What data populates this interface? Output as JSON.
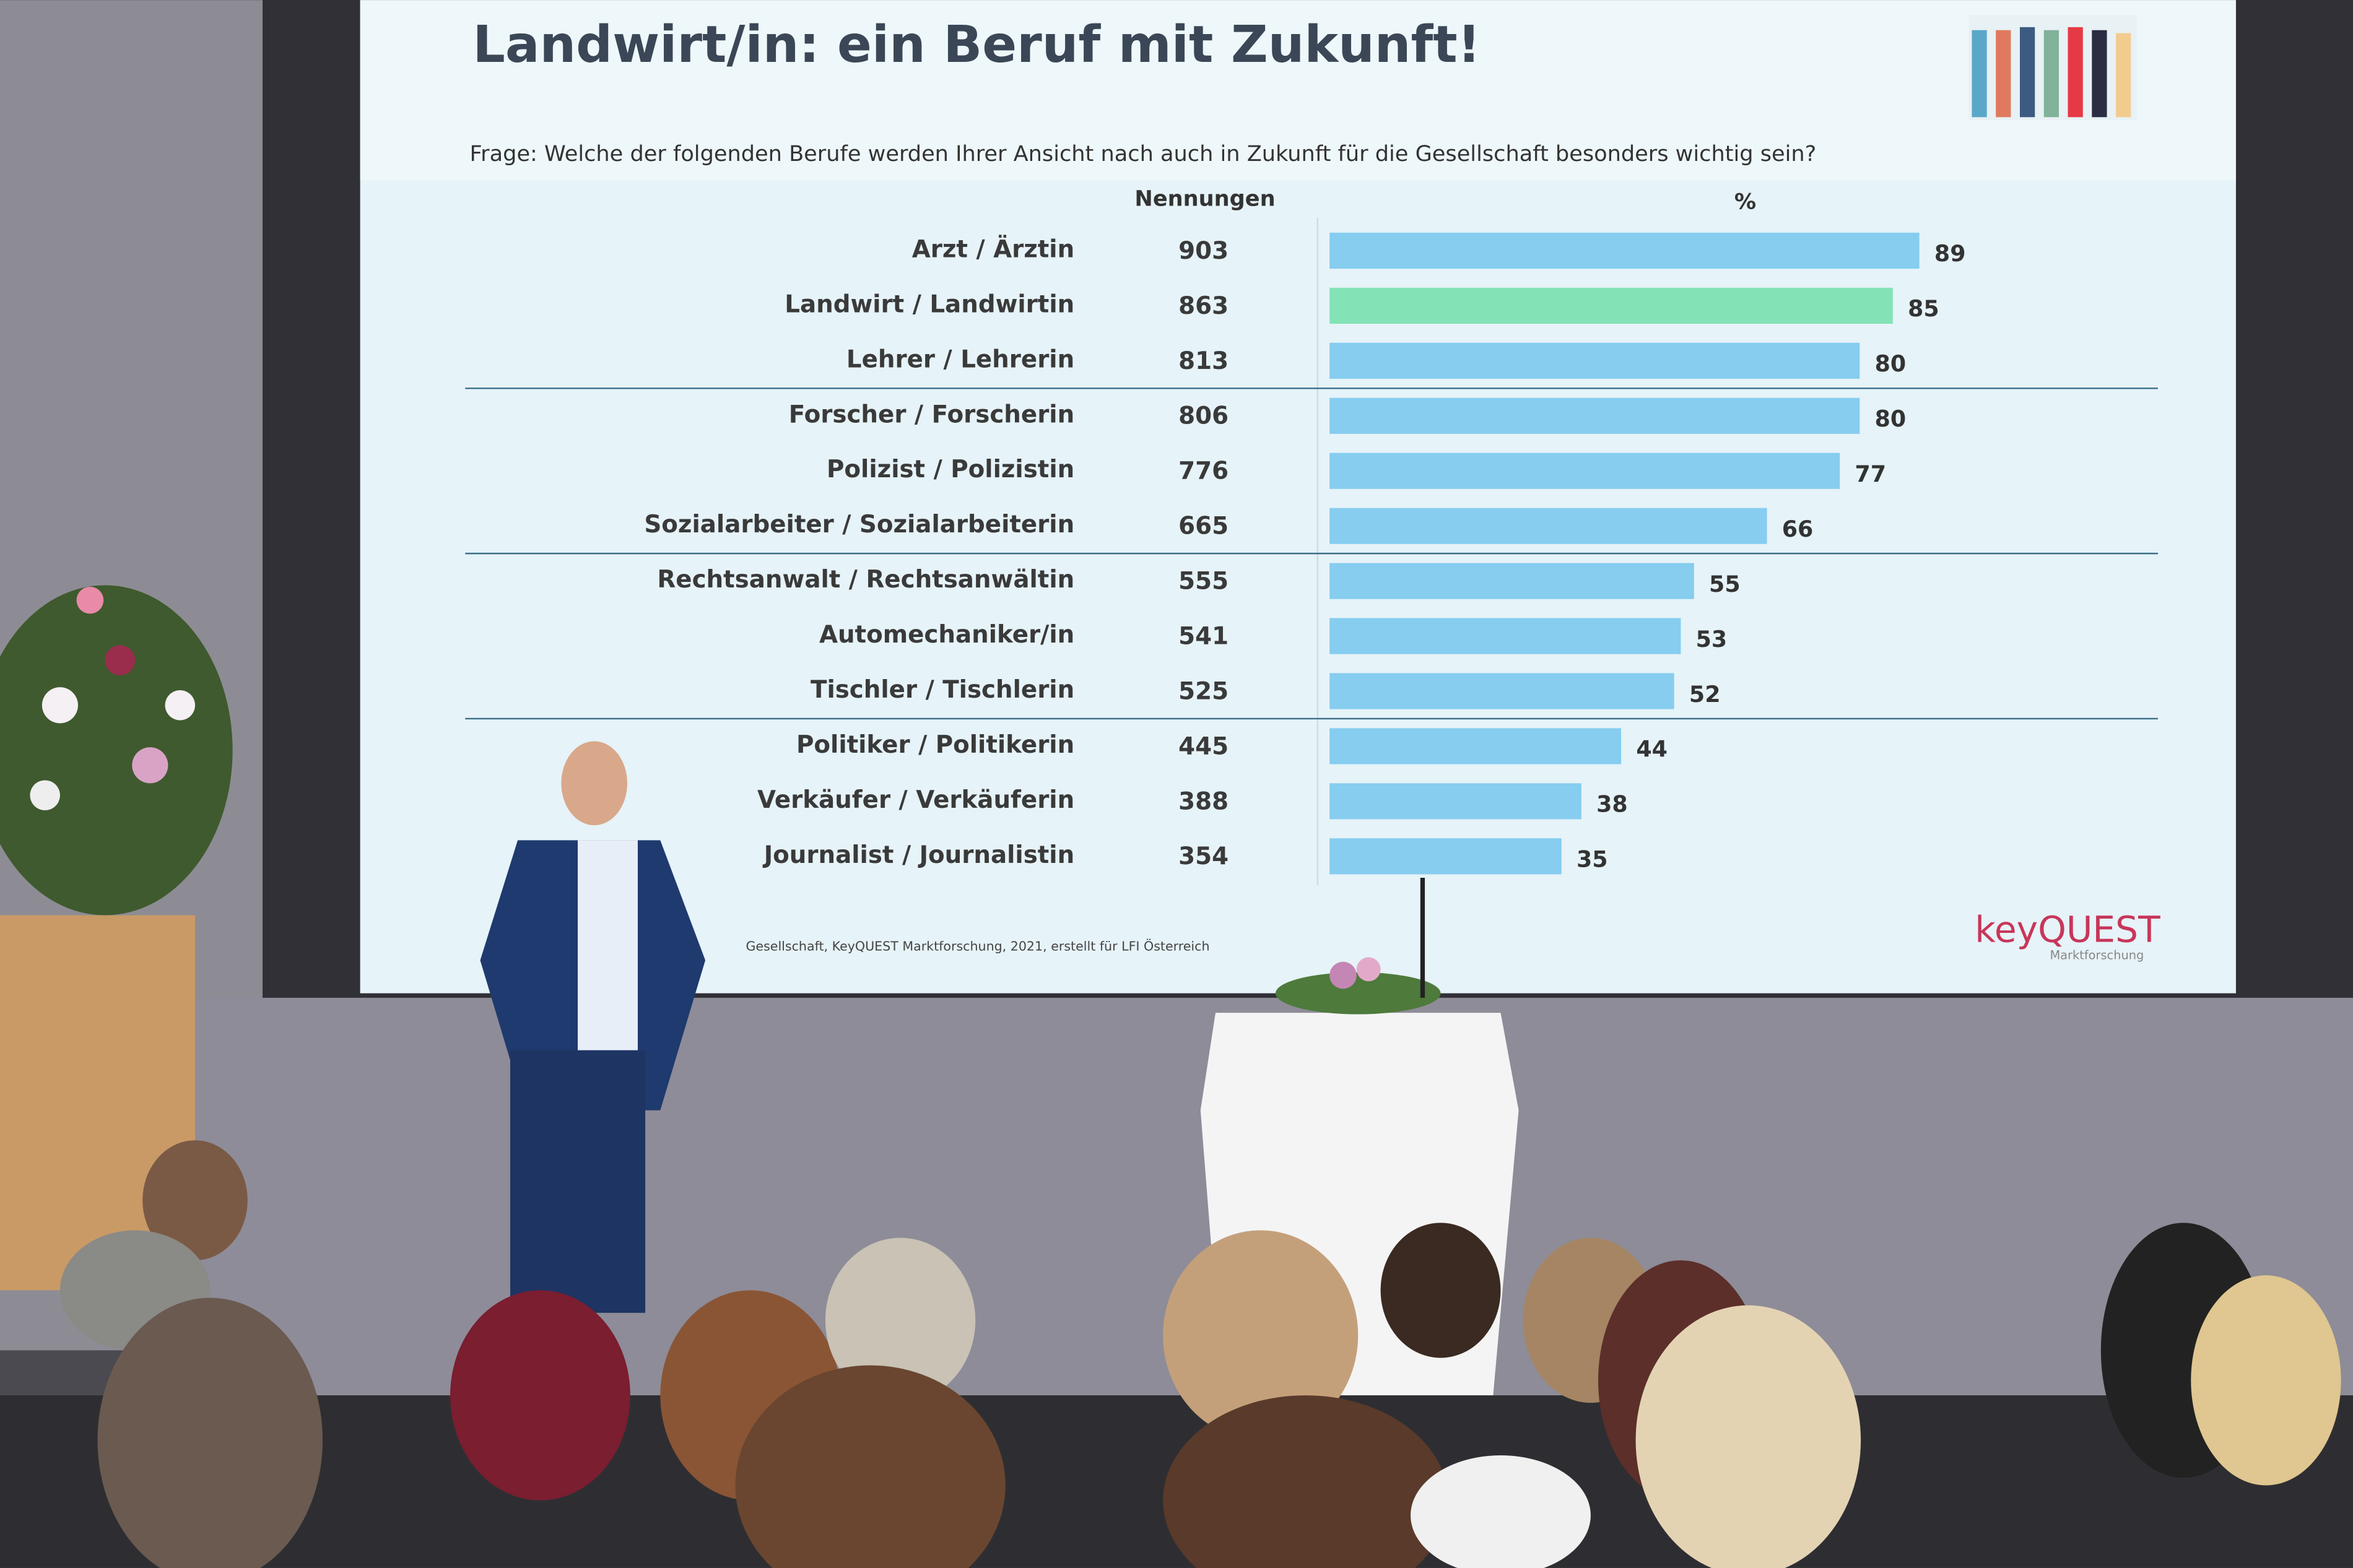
{
  "chart_data": {
    "type": "bar",
    "title": "Landwirt/in: ein Beruf mit Zukunft!",
    "subtitle": "Frage: Welche der folgenden Berufe werden Ihrer Ansicht nach auch in Zukunft für die Gesellschaft besonders wichtig sein?",
    "count_header": "Nennungen",
    "value_header": "%",
    "categories": [
      "Arzt / Ärztin",
      "Landwirt / Landwirtin",
      "Lehrer / Lehrerin",
      "Forscher / Forscherin",
      "Polizist / Polizistin",
      "Sozialarbeiter / Sozialarbeiterin",
      "Rechtsanwalt / Rechtsanwältin",
      "Automechaniker/in",
      "Tischler / Tischlerin",
      "Politiker / Politikerin",
      "Verkäufer / Verkäuferin",
      "Journalist / Journalistin"
    ],
    "counts": [
      903,
      863,
      813,
      806,
      776,
      665,
      555,
      541,
      525,
      445,
      388,
      354
    ],
    "values": [
      89,
      85,
      80,
      80,
      77,
      66,
      55,
      53,
      52,
      44,
      38,
      35
    ],
    "colors": [
      "#86cdf0",
      "#84e3b6",
      "#86cdf0",
      "#86cdf0",
      "#86cdf0",
      "#86cdf0",
      "#86cdf0",
      "#86cdf0",
      "#86cdf0",
      "#86cdf0",
      "#86cdf0",
      "#86cdf0"
    ],
    "xlim": [
      0,
      125
    ],
    "source": "Gesellschaft, KeyQUEST Marktforschung, 2021, erstellt für LFI Österreich",
    "logo": "keyQUEST",
    "logo_subtitle": "Marktforschung"
  }
}
